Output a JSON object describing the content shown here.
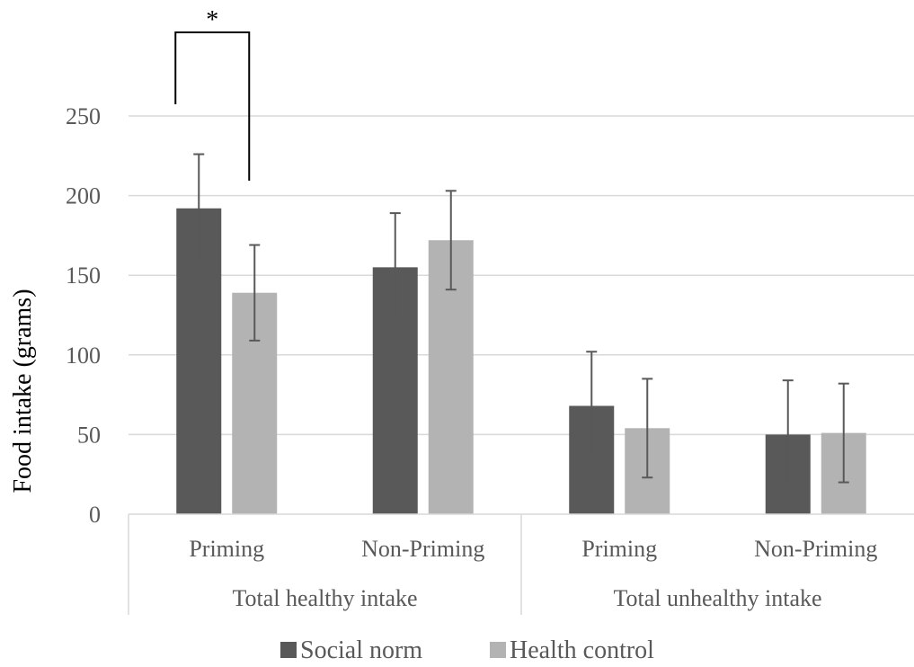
{
  "chart_data": {
    "type": "bar",
    "ylabel": "Food intake (grams)",
    "ylim": [
      0,
      250
    ],
    "yticks": [
      0,
      50,
      100,
      150,
      200,
      250
    ],
    "grid": true,
    "legend_position": "bottom",
    "groups": [
      {
        "label": "Total healthy intake",
        "categories": [
          "Priming",
          "Non-Priming"
        ]
      },
      {
        "label": "Total unhealthy intake",
        "categories": [
          "Priming",
          "Non-Priming"
        ]
      }
    ],
    "categories": [
      "Priming",
      "Non-Priming",
      "Priming",
      "Non-Priming"
    ],
    "series": [
      {
        "name": "Social norm",
        "color": "#595959",
        "values": [
          192,
          155,
          68,
          50
        ],
        "errors": [
          34,
          34,
          34,
          34
        ]
      },
      {
        "name": "Health control",
        "color": "#b3b3b3",
        "values": [
          139,
          172,
          54,
          51
        ],
        "errors": [
          30,
          31,
          31,
          31
        ]
      }
    ],
    "annotations": [
      {
        "type": "significance",
        "label": "*",
        "category_index": 0,
        "between_series": [
          0,
          1
        ]
      }
    ]
  }
}
